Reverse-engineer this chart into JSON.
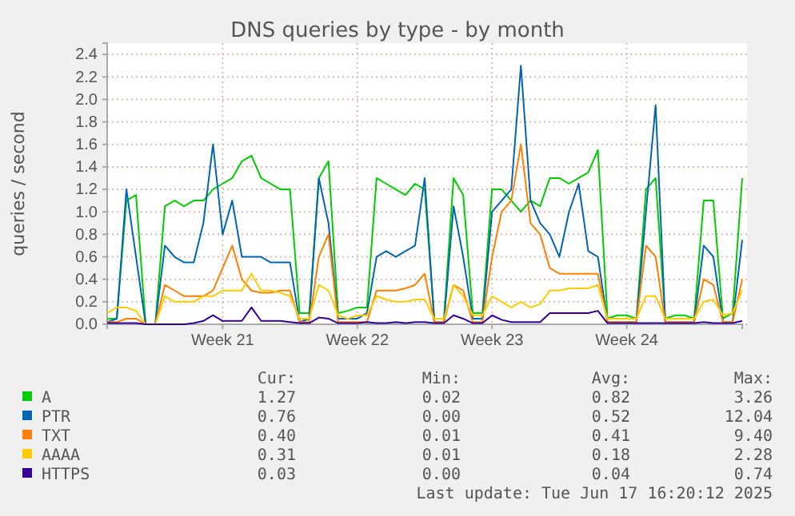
{
  "chart_data": {
    "type": "line",
    "title": "DNS queries by type - by month",
    "ylabel": "queries / second",
    "categories": [
      null,
      null,
      null,
      null,
      null,
      null,
      null,
      null,
      null,
      null,
      null,
      null,
      "Week 21",
      null,
      null,
      null,
      null,
      null,
      null,
      null,
      null,
      null,
      null,
      null,
      null,
      null,
      "Week 22",
      null,
      null,
      null,
      null,
      null,
      null,
      null,
      null,
      null,
      null,
      null,
      null,
      null,
      "Week 23",
      null,
      null,
      null,
      null,
      null,
      null,
      null,
      null,
      null,
      null,
      null,
      null,
      null,
      "Week 24",
      null,
      null,
      null,
      null,
      null,
      null,
      null,
      null,
      null,
      null,
      null,
      null
    ],
    "ylim": [
      0,
      2.5
    ],
    "yticks": [
      {
        "value": 0,
        "label": "0.0"
      },
      {
        "value": 0.2,
        "label": "0.2"
      },
      {
        "value": 0.4,
        "label": "0.4"
      },
      {
        "value": 0.6,
        "label": "0.6"
      },
      {
        "value": 0.8,
        "label": "0.8"
      },
      {
        "value": 1.0,
        "label": "1.0"
      },
      {
        "value": 1.2,
        "label": "1.2"
      },
      {
        "value": 1.4,
        "label": "1.4"
      },
      {
        "value": 1.6,
        "label": "1.6"
      },
      {
        "value": 1.8,
        "label": "1.8"
      },
      {
        "value": 2.0,
        "label": "2.0"
      },
      {
        "value": 2.2,
        "label": "2.2"
      },
      {
        "value": 2.4,
        "label": "2.4"
      }
    ],
    "grid": true,
    "legend": "bottom",
    "series": [
      {
        "name": "A",
        "color": "#00cc00",
        "values": [
          0.05,
          0.05,
          1.1,
          1.15,
          0,
          0,
          1.05,
          1.1,
          1.05,
          1.1,
          1.1,
          1.2,
          1.25,
          1.3,
          1.45,
          1.5,
          1.3,
          1.25,
          1.2,
          1.2,
          0.1,
          0.1,
          1.3,
          1.45,
          0.1,
          0.12,
          0.15,
          0.15,
          1.3,
          1.25,
          1.2,
          1.15,
          1.25,
          1.2,
          0.05,
          0.05,
          1.3,
          1.15,
          0.1,
          0.1,
          1.2,
          1.2,
          1.1,
          1.0,
          1.1,
          1.05,
          1.3,
          1.3,
          1.25,
          1.3,
          1.35,
          1.55,
          0.05,
          0.08,
          0.08,
          0.05,
          1.2,
          1.3,
          0.05,
          0.08,
          0.08,
          0.05,
          1.1,
          1.1,
          0.05,
          0.1,
          1.3
        ]
      },
      {
        "name": "PTR",
        "color": "#0066b3",
        "values": [
          0.02,
          0.05,
          1.2,
          0.6,
          0,
          0,
          0.7,
          0.6,
          0.55,
          0.55,
          0.9,
          1.6,
          0.8,
          1.1,
          0.6,
          0.6,
          0.6,
          0.55,
          0.55,
          0.55,
          0.02,
          0.05,
          1.3,
          0.9,
          0.05,
          0.05,
          0.05,
          0.1,
          0.6,
          0.65,
          0.6,
          0.65,
          0.7,
          1.3,
          0.02,
          0.02,
          1.05,
          0.6,
          0.05,
          0.05,
          1.0,
          1.1,
          1.2,
          2.3,
          1.1,
          0.9,
          0.8,
          0.6,
          1.0,
          1.25,
          0.65,
          0.6,
          0.02,
          0.02,
          0.02,
          0.02,
          1.0,
          1.95,
          0.02,
          0.02,
          0.02,
          0.02,
          0.7,
          0.6,
          0.02,
          0.02,
          0.75
        ]
      },
      {
        "name": "TXT",
        "color": "#ff8000",
        "values": [
          0.02,
          0.02,
          0.05,
          0.05,
          0,
          0,
          0.35,
          0.3,
          0.25,
          0.25,
          0.25,
          0.3,
          0.5,
          0.7,
          0.4,
          0.3,
          0.28,
          0.28,
          0.3,
          0.3,
          0.02,
          0.02,
          0.6,
          0.8,
          0.02,
          0.02,
          0.02,
          0.02,
          0.3,
          0.3,
          0.3,
          0.32,
          0.35,
          0.45,
          0.02,
          0.02,
          0.35,
          0.3,
          0.02,
          0.02,
          0.6,
          1.0,
          1.1,
          1.6,
          0.9,
          0.8,
          0.5,
          0.45,
          0.45,
          0.45,
          0.45,
          0.45,
          0.02,
          0.02,
          0.02,
          0.02,
          0.7,
          0.6,
          0.02,
          0.02,
          0.02,
          0.02,
          0.4,
          0.35,
          0.02,
          0.02,
          0.4
        ]
      },
      {
        "name": "AAAA",
        "color": "#ffcc00",
        "values": [
          0.1,
          0.15,
          0.15,
          0.12,
          0,
          0,
          0.25,
          0.2,
          0.2,
          0.2,
          0.25,
          0.25,
          0.3,
          0.3,
          0.3,
          0.45,
          0.3,
          0.3,
          0.28,
          0.25,
          0.05,
          0.05,
          0.35,
          0.3,
          0.08,
          0.05,
          0.08,
          0.08,
          0.25,
          0.22,
          0.2,
          0.2,
          0.22,
          0.22,
          0.05,
          0.05,
          0.35,
          0.25,
          0.08,
          0.08,
          0.25,
          0.2,
          0.15,
          0.2,
          0.15,
          0.18,
          0.3,
          0.3,
          0.32,
          0.32,
          0.32,
          0.35,
          0.05,
          0.05,
          0.05,
          0.05,
          0.25,
          0.25,
          0.05,
          0.05,
          0.05,
          0.05,
          0.2,
          0.22,
          0.08,
          0.1,
          0.3
        ]
      },
      {
        "name": "HTTPS",
        "color": "#330099",
        "values": [
          0.01,
          0.01,
          0.01,
          0.01,
          0,
          0,
          0,
          0,
          0,
          0.01,
          0.03,
          0.08,
          0.03,
          0.03,
          0.03,
          0.15,
          0.03,
          0.03,
          0.03,
          0.02,
          0.01,
          0.01,
          0.06,
          0.05,
          0.01,
          0.01,
          0.01,
          0.02,
          0.01,
          0.01,
          0.02,
          0.01,
          0.02,
          0.02,
          0.01,
          0.01,
          0.08,
          0.05,
          0.01,
          0.01,
          0.08,
          0.04,
          0.02,
          0.02,
          0.02,
          0.02,
          0.1,
          0.1,
          0.1,
          0.1,
          0.1,
          0.12,
          0.01,
          0.01,
          0.01,
          0.01,
          0.01,
          0.01,
          0.01,
          0.01,
          0.01,
          0.01,
          0.02,
          0.01,
          0.01,
          0.01,
          0.03
        ]
      }
    ],
    "annotations": [
      "Cur:",
      "Min:",
      "Avg:",
      "Max:",
      "1.27",
      "0.02",
      "0.82",
      "3.26",
      "0.76",
      "0.00",
      "0.52",
      "12.04",
      "0.40",
      "0.01",
      "0.41",
      "9.40",
      "0.31",
      "0.01",
      "0.18",
      "2.28",
      "0.03",
      "0.00",
      "0.04",
      "0.74",
      "Last update: Tue Jun 17 16:20:12 2025"
    ]
  }
}
